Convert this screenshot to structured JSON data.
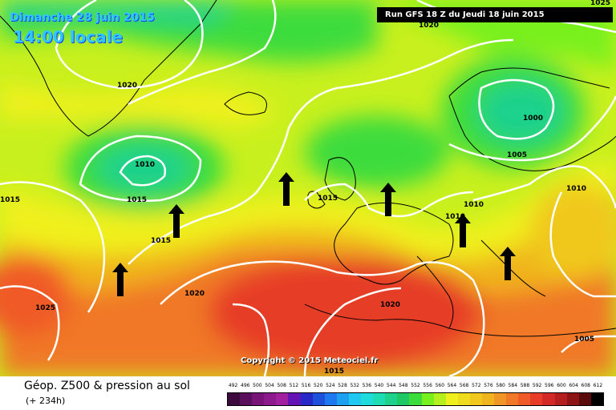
{
  "header": {
    "date_text": "Dimanche 28 juin 2015",
    "time_text": "14:00 locale",
    "run_text": "Run GFS 18 Z du Jeudi 18 juin 2015"
  },
  "footer": {
    "copyright": "Copyright © 2015 Meteociel.fr"
  },
  "legend": {
    "title": "Géop. Z500 & pression au sol",
    "subtitle": "(+ 234h)",
    "ticks": [
      "492",
      "496",
      "500",
      "504",
      "508",
      "512",
      "516",
      "520",
      "524",
      "528",
      "532",
      "536",
      "540",
      "544",
      "548",
      "552",
      "556",
      "560",
      "564",
      "568",
      "572",
      "576",
      "580",
      "584",
      "588",
      "592",
      "596",
      "600",
      "604",
      "608",
      "612"
    ],
    "colors": [
      "#3c0a3c",
      "#5a0f5a",
      "#781478",
      "#8c1a8c",
      "#a020a0",
      "#6414b4",
      "#2828c8",
      "#1e50dc",
      "#1e78f0",
      "#1ea0f0",
      "#1ec8f0",
      "#1edcdc",
      "#1edcb4",
      "#1ed28c",
      "#1ec864",
      "#3cdc3c",
      "#78f01e",
      "#b4f01e",
      "#f0f01e",
      "#f0dc1e",
      "#f0c81e",
      "#f0b41e",
      "#f09628",
      "#f07828",
      "#f05a28",
      "#e63c28",
      "#d22828",
      "#b41e1e",
      "#8c1414",
      "#5a0a0a",
      "#000000"
    ]
  },
  "isobars": [
    {
      "label": "1025"
    },
    {
      "label": "1020"
    },
    {
      "label": "1020"
    },
    {
      "label": "1000"
    },
    {
      "label": "1005"
    },
    {
      "label": "1010"
    },
    {
      "label": "1010"
    },
    {
      "label": "1015"
    },
    {
      "label": "1015"
    },
    {
      "label": "1015"
    },
    {
      "label": "1015"
    },
    {
      "label": "1010"
    },
    {
      "label": "1010"
    },
    {
      "label": "1025"
    },
    {
      "label": "1020"
    },
    {
      "label": "1020"
    },
    {
      "label": "1015"
    },
    {
      "label": "1005"
    }
  ],
  "colors": {
    "banner_text": "#2ec8ff",
    "banner_shadow": "#1a3cff",
    "isobar": "#ffffff"
  },
  "icons": [
    "arrow-up-icon"
  ]
}
